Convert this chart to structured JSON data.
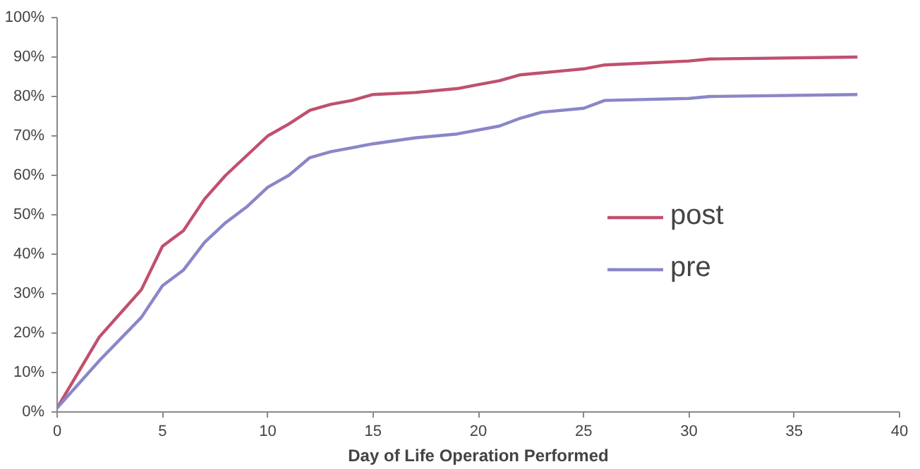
{
  "chart_data": {
    "type": "line",
    "xlabel": "Day of Life Operation Performed",
    "xlim": [
      0,
      40
    ],
    "xticks": [
      0,
      5,
      10,
      15,
      20,
      25,
      30,
      35,
      40
    ],
    "ylim": [
      0,
      100
    ],
    "yticks": [
      {
        "value": 0,
        "label": "0%"
      },
      {
        "value": 10,
        "label": "10%"
      },
      {
        "value": 20,
        "label": "20%"
      },
      {
        "value": 30,
        "label": "30%"
      },
      {
        "value": 40,
        "label": "40%"
      },
      {
        "value": 50,
        "label": "50%"
      },
      {
        "value": 60,
        "label": "60%"
      },
      {
        "value": 70,
        "label": "70%"
      },
      {
        "value": 80,
        "label": "80%"
      },
      {
        "value": 90,
        "label": "90%"
      },
      {
        "value": 100,
        "label": "100%"
      }
    ],
    "grid": false,
    "legend": "right",
    "marker": "none",
    "line_style": "solid",
    "series": [
      {
        "name": "post",
        "color": "#c0506e",
        "x": [
          0,
          2,
          3,
          4,
          5,
          6,
          7,
          8,
          9,
          10,
          11,
          12,
          13,
          14,
          15,
          17,
          19,
          20,
          21,
          22,
          24,
          25,
          26,
          30,
          31,
          38
        ],
        "values": [
          1,
          19,
          25,
          31,
          42,
          46,
          54,
          60,
          65,
          70,
          73,
          76.5,
          78,
          79,
          80.5,
          81,
          82,
          83,
          84,
          85.5,
          86.5,
          87,
          88,
          89,
          89.5,
          90
        ]
      },
      {
        "name": "pre",
        "color": "#8a86c8",
        "x": [
          0,
          2,
          4,
          5,
          6,
          7,
          8,
          9,
          10,
          11,
          12,
          13,
          15,
          17,
          19,
          21,
          22,
          23,
          25,
          26,
          30,
          31,
          38
        ],
        "values": [
          1,
          13,
          24,
          32,
          36,
          43,
          48,
          52,
          57,
          60,
          64.5,
          66,
          68,
          69.5,
          70.5,
          72.5,
          74.5,
          76,
          77,
          79,
          79.5,
          80,
          80.5
        ]
      }
    ]
  }
}
